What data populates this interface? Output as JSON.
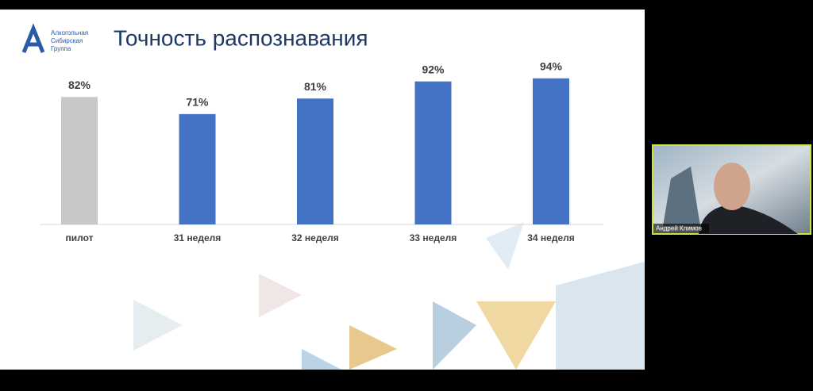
{
  "logo": {
    "lines": [
      "Алкогольная",
      "Сибирская",
      "Группа"
    ]
  },
  "chart_data": {
    "type": "bar",
    "title": "Точность распознавания",
    "categories": [
      "пилот",
      "31 неделя",
      "32 неделя",
      "33 неделя",
      "34 неделя"
    ],
    "values": [
      82,
      71,
      81,
      92,
      94
    ],
    "value_labels": [
      "82%",
      "71%",
      "81%",
      "92%",
      "94%"
    ],
    "colors": [
      "#c8c8c8",
      "#4472c4",
      "#4472c4",
      "#4472c4",
      "#4472c4"
    ]
  },
  "participant": {
    "name": "Андрей Климов"
  }
}
